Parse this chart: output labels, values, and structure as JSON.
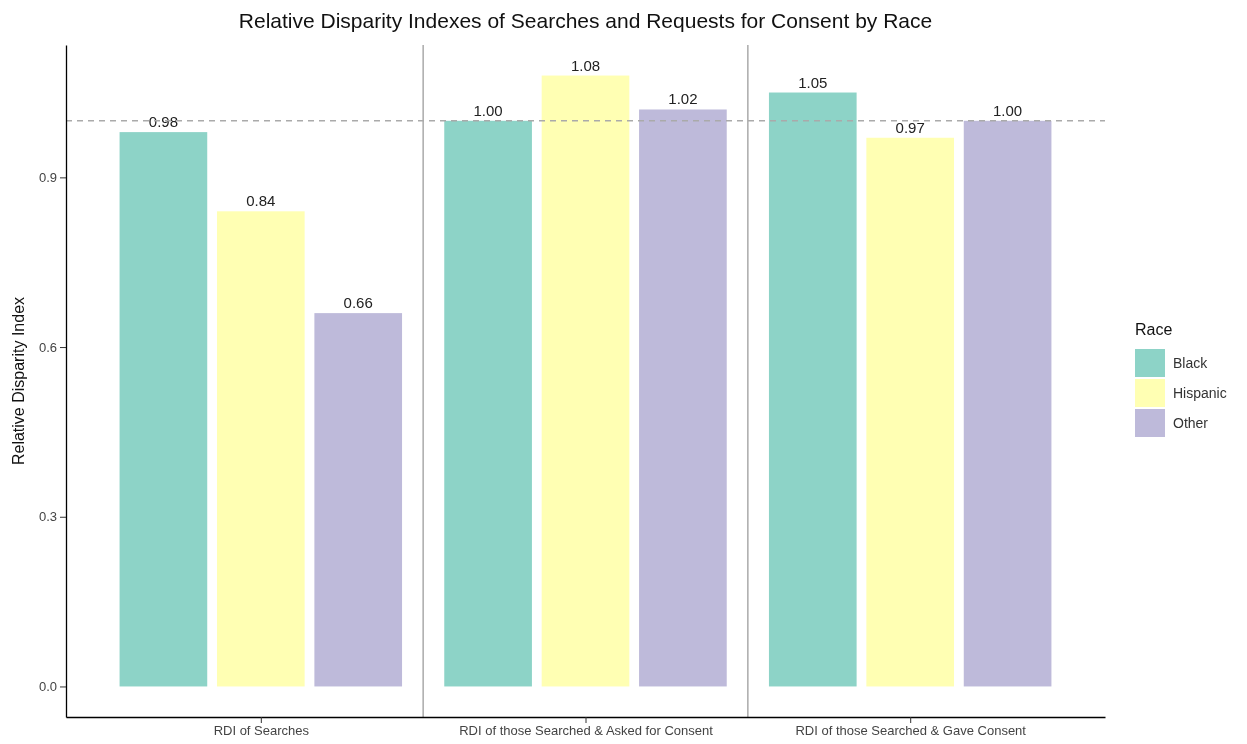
{
  "chart_data": {
    "type": "bar",
    "title": "Relative Disparity Indexes of Searches and Requests for Consent by Race",
    "ylabel": "Relative Disparity Index",
    "legend_title": "Race",
    "legend": "right",
    "grid": false,
    "categories": [
      "RDI of Searches",
      "RDI of those Searched & Asked for Consent",
      "RDI of those Searched & Gave Consent"
    ],
    "series": [
      {
        "name": "Black",
        "color": "#8dd3c7",
        "values": [
          0.98,
          1.0,
          1.05
        ],
        "value_labels": [
          "0.98",
          "1.00",
          "1.05"
        ]
      },
      {
        "name": "Hispanic",
        "color": "#ffffb3",
        "values": [
          0.84,
          1.08,
          0.97
        ],
        "value_labels": [
          "0.84",
          "1.08",
          "0.97"
        ]
      },
      {
        "name": "Other",
        "color": "#bebada",
        "values": [
          0.66,
          1.02,
          1.0
        ],
        "value_labels": [
          "0.66",
          "1.02",
          "1.00"
        ]
      }
    ],
    "ylim": [
      -0.054,
      1.134
    ],
    "yticks": [
      {
        "value": 0,
        "label": "0.0"
      },
      {
        "value": 0.3,
        "label": "0.3"
      },
      {
        "value": 0.6,
        "label": "0.6"
      },
      {
        "value": 0.9,
        "label": "0.9"
      }
    ],
    "ref_lines": [
      {
        "axis": "y",
        "value": 1,
        "color": "#aaaaaa",
        "line_style": "dashed"
      }
    ]
  }
}
